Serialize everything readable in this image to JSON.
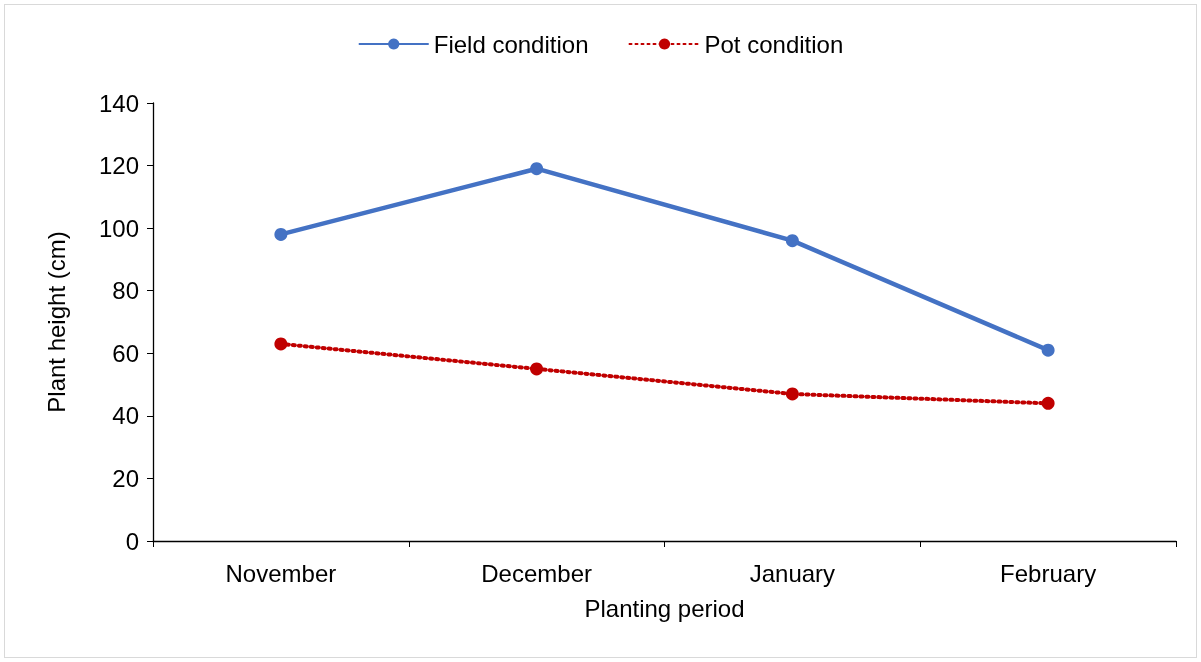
{
  "chart_data": {
    "type": "line",
    "xlabel": "Planting period",
    "ylabel": "Plant height (cm)",
    "categories": [
      "November",
      "December",
      "January",
      "February"
    ],
    "series": [
      {
        "name": "Field condition",
        "color": "#4472c4",
        "line_style": "solid",
        "values": [
          98,
          119,
          96,
          61
        ]
      },
      {
        "name": "Pot condition",
        "color": "#c00000",
        "line_style": "dotted",
        "values": [
          63,
          55,
          47,
          44
        ]
      }
    ],
    "ylim": [
      0,
      140
    ],
    "yticks": [
      0,
      20,
      40,
      60,
      80,
      100,
      120,
      140
    ],
    "grid": false,
    "legend": "top",
    "marker": "circle"
  }
}
